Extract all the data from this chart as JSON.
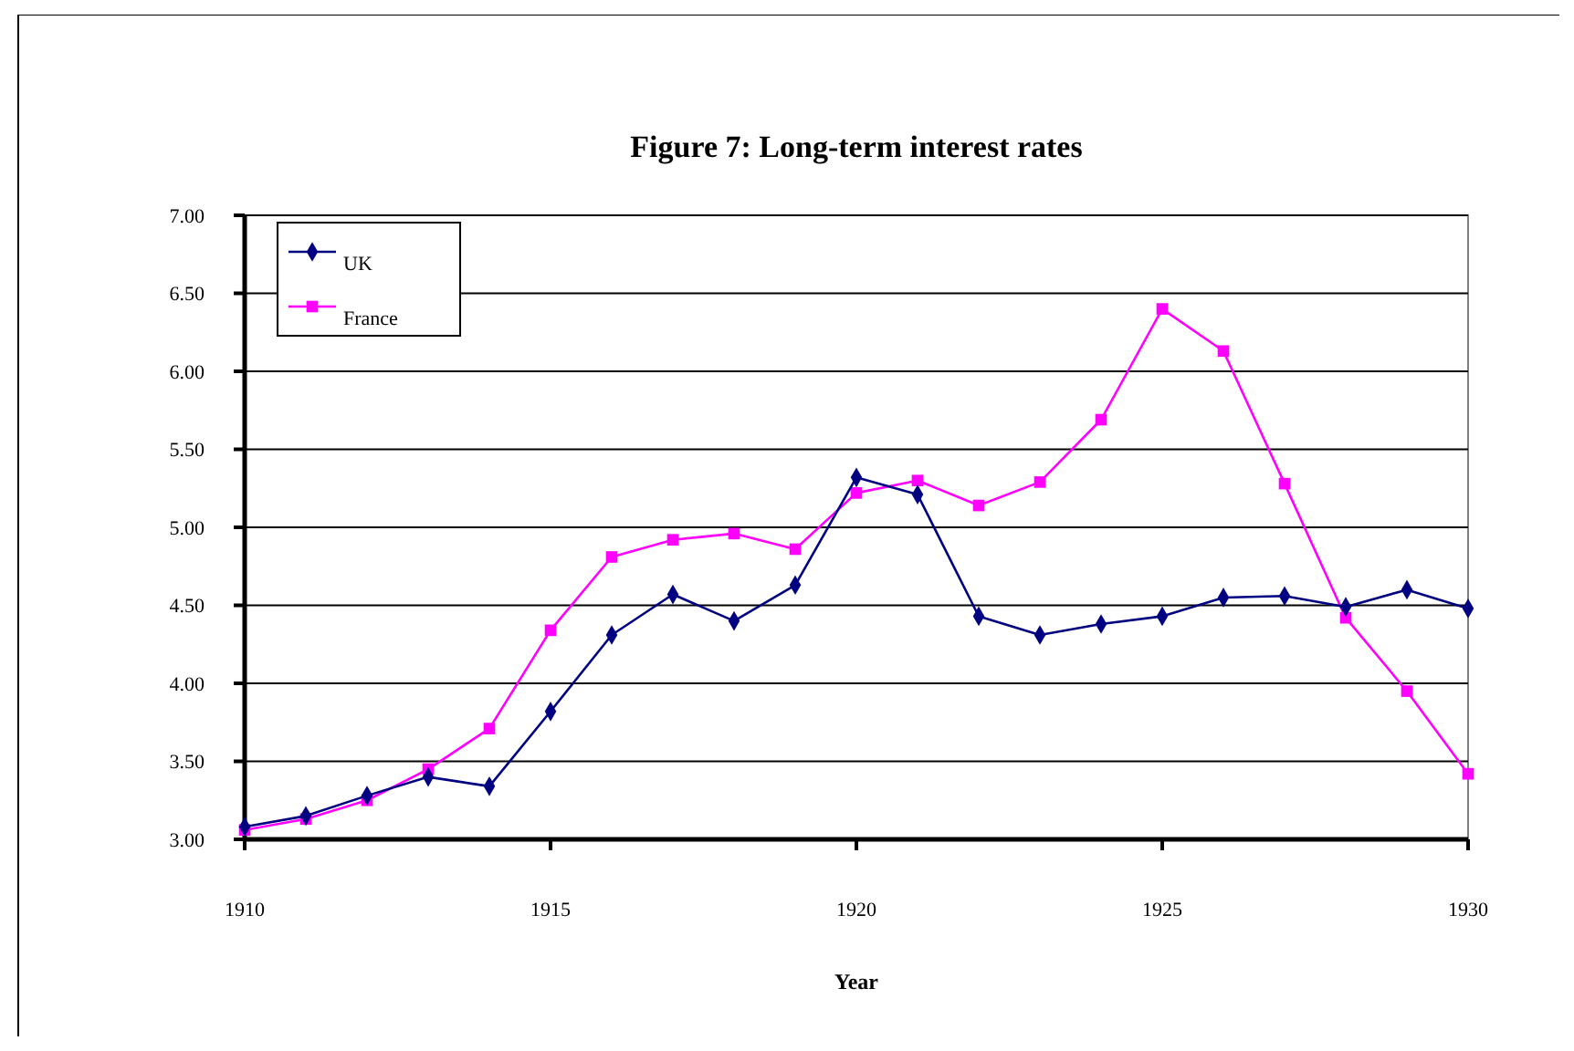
{
  "chart_data": {
    "type": "line",
    "title": "Figure 7: Long-term interest rates",
    "xlabel": "Year",
    "x": [
      1910,
      1911,
      1912,
      1913,
      1914,
      1915,
      1916,
      1917,
      1918,
      1919,
      1920,
      1921,
      1922,
      1923,
      1924,
      1925,
      1926,
      1927,
      1928,
      1929,
      1930
    ],
    "series": [
      {
        "name": "UK",
        "color": "#000080",
        "marker": "diamond",
        "values": [
          3.08,
          3.15,
          3.28,
          3.4,
          3.34,
          3.82,
          4.31,
          4.57,
          4.4,
          4.63,
          5.32,
          5.21,
          4.43,
          4.31,
          4.38,
          4.43,
          4.55,
          4.56,
          4.49,
          4.6,
          4.48
        ]
      },
      {
        "name": "France",
        "color": "#ff00ff",
        "marker": "square",
        "values": [
          3.06,
          3.13,
          3.25,
          3.45,
          3.71,
          4.34,
          4.81,
          4.92,
          4.96,
          4.86,
          5.22,
          5.3,
          5.14,
          5.29,
          5.69,
          6.4,
          6.13,
          5.28,
          4.42,
          3.95,
          3.42
        ]
      }
    ],
    "xlim": [
      1910,
      1930
    ],
    "xticks": [
      1910,
      1915,
      1920,
      1925,
      1930
    ],
    "ylim": [
      3,
      7
    ],
    "yticks": [
      {
        "value": 3,
        "label": "3.00"
      },
      {
        "value": 3.5,
        "label": "3.50"
      },
      {
        "value": 4,
        "label": "4.00"
      },
      {
        "value": 4.5,
        "label": "4.50"
      },
      {
        "value": 5,
        "label": "5.00"
      },
      {
        "value": 5.5,
        "label": "5.50"
      },
      {
        "value": 6,
        "label": "6.00"
      },
      {
        "value": 6.5,
        "label": "6.50"
      },
      {
        "value": 7,
        "label": "7.00"
      }
    ],
    "grid": "y",
    "legend": "top left",
    "line_style": "solid"
  }
}
